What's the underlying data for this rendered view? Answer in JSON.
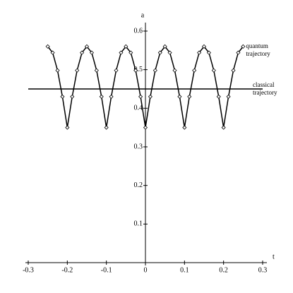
{
  "chart_data": {
    "type": "line",
    "x_label": "t",
    "y_label": "a",
    "xlim": [
      -0.3,
      0.3
    ],
    "ylim": [
      0,
      0.6
    ],
    "xticks": [
      -0.3,
      -0.2,
      -0.1,
      0,
      0.1,
      0.2,
      0.3
    ],
    "yticks": [
      0.1,
      0.2,
      0.3,
      0.4,
      0.5,
      0.6
    ],
    "series": [
      {
        "name": "quantum trajectory",
        "color": "#000000",
        "markers": true,
        "x": [
          -0.25,
          -0.2375,
          -0.225,
          -0.2125,
          -0.2,
          -0.1875,
          -0.175,
          -0.1625,
          -0.15,
          -0.1375,
          -0.125,
          -0.1125,
          -0.1,
          -0.0875,
          -0.075,
          -0.0625,
          -0.05,
          -0.0375,
          -0.025,
          -0.0125,
          0,
          0.0125,
          0.025,
          0.0375,
          0.05,
          0.0625,
          0.075,
          0.0875,
          0.1,
          0.1125,
          0.125,
          0.1375,
          0.15,
          0.1625,
          0.175,
          0.1875,
          0.2,
          0.2125,
          0.225,
          0.2375,
          0.25
        ],
        "values": [
          0.56,
          0.544,
          0.498,
          0.43,
          0.35,
          0.43,
          0.498,
          0.544,
          0.56,
          0.544,
          0.498,
          0.43,
          0.35,
          0.43,
          0.498,
          0.544,
          0.56,
          0.544,
          0.498,
          0.43,
          0.35,
          0.43,
          0.498,
          0.544,
          0.56,
          0.544,
          0.498,
          0.43,
          0.35,
          0.43,
          0.498,
          0.544,
          0.56,
          0.544,
          0.498,
          0.43,
          0.35,
          0.43,
          0.498,
          0.544,
          0.56
        ]
      },
      {
        "name": "classical trajectory",
        "color": "#000000",
        "markers": false,
        "x": [
          -0.3,
          0.3
        ],
        "values": [
          0.45,
          0.45
        ]
      }
    ]
  }
}
